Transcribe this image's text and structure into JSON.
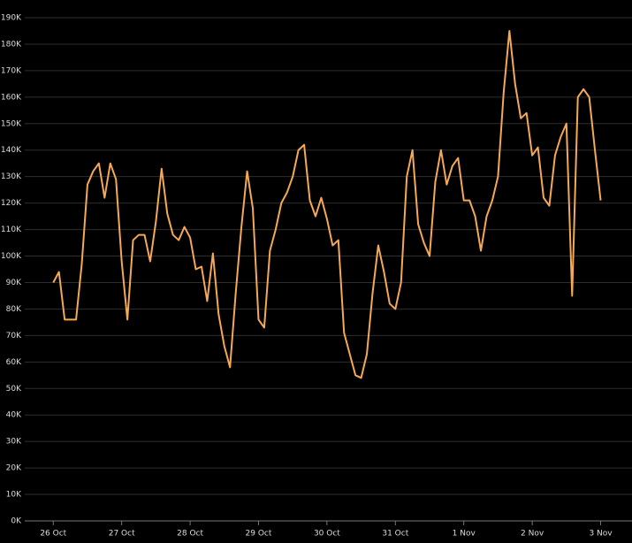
{
  "chart_data": {
    "type": "line",
    "x": [
      0,
      1,
      2,
      3,
      4,
      5,
      6,
      7,
      8,
      9,
      10,
      11,
      12,
      13,
      14,
      15,
      16,
      17,
      18,
      19,
      20,
      21,
      22,
      23,
      24,
      25,
      26,
      27,
      28,
      29,
      30,
      31,
      32,
      33,
      34,
      35,
      36,
      37,
      38,
      39,
      40,
      41,
      42,
      43,
      44,
      45,
      46,
      47,
      48,
      49,
      50,
      51,
      52,
      53,
      54,
      55,
      56,
      57,
      58,
      59,
      60,
      61,
      62,
      63,
      64,
      65,
      66,
      67,
      68,
      69,
      70,
      71,
      72,
      73,
      74,
      75,
      76,
      77,
      78,
      79,
      80,
      81,
      82,
      83,
      84,
      85,
      86,
      87,
      88,
      89,
      90,
      91,
      92,
      93,
      94,
      95,
      96
    ],
    "series": [
      {
        "color": "#f5a955",
        "values": [
          90000,
          94000,
          76000,
          76000,
          76000,
          97000,
          127000,
          132000,
          135000,
          122000,
          135000,
          129000,
          98000,
          76000,
          106000,
          108000,
          108000,
          98000,
          113000,
          133000,
          116000,
          108000,
          106000,
          111000,
          107000,
          95000,
          96000,
          83000,
          101000,
          78000,
          66000,
          58000,
          86000,
          111000,
          132000,
          118000,
          76000,
          73000,
          102000,
          110000,
          120000,
          124000,
          130000,
          140000,
          142000,
          121000,
          115000,
          122000,
          114000,
          104000,
          106000,
          71000,
          63000,
          55000,
          54000,
          63000,
          86000,
          104000,
          94000,
          82000,
          80000,
          90000,
          130000,
          140000,
          112000,
          105000,
          100000,
          128000,
          140000,
          127000,
          134000,
          137000,
          121000,
          121000,
          115000,
          102000,
          115000,
          121000,
          130000,
          162000,
          185000,
          165000,
          152000,
          154000,
          138000,
          141000,
          122000,
          119000,
          138000,
          145000,
          150000,
          85000,
          160000,
          163000,
          160000,
          140000,
          121000
        ]
      }
    ],
    "xlim": [
      -5,
      101.5
    ],
    "xticks": [
      {
        "value": 0,
        "label": "26 Oct"
      },
      {
        "value": 12,
        "label": "27 Oct"
      },
      {
        "value": 24,
        "label": "28 Oct"
      },
      {
        "value": 36,
        "label": "29 Oct"
      },
      {
        "value": 48,
        "label": "30 Oct"
      },
      {
        "value": 60,
        "label": "31 Oct"
      },
      {
        "value": 72,
        "label": "1 Nov"
      },
      {
        "value": 84,
        "label": "2 Nov"
      },
      {
        "value": 96,
        "label": "3 Nov"
      }
    ],
    "ylim": [
      0,
      190000
    ],
    "yticks": [
      {
        "value": 0,
        "label": "0K"
      },
      {
        "value": 10000,
        "label": "10K"
      },
      {
        "value": 20000,
        "label": "20K"
      },
      {
        "value": 30000,
        "label": "30K"
      },
      {
        "value": 40000,
        "label": "40K"
      },
      {
        "value": 50000,
        "label": "50K"
      },
      {
        "value": 60000,
        "label": "60K"
      },
      {
        "value": 70000,
        "label": "70K"
      },
      {
        "value": 80000,
        "label": "80K"
      },
      {
        "value": 90000,
        "label": "90K"
      },
      {
        "value": 100000,
        "label": "100K"
      },
      {
        "value": 110000,
        "label": "110K"
      },
      {
        "value": 120000,
        "label": "120K"
      },
      {
        "value": 130000,
        "label": "130K"
      },
      {
        "value": 140000,
        "label": "140K"
      },
      {
        "value": 150000,
        "label": "150K"
      },
      {
        "value": 160000,
        "label": "160K"
      },
      {
        "value": 170000,
        "label": "170K"
      },
      {
        "value": 180000,
        "label": "180K"
      },
      {
        "value": 190000,
        "label": "190K"
      }
    ],
    "grid": true
  }
}
